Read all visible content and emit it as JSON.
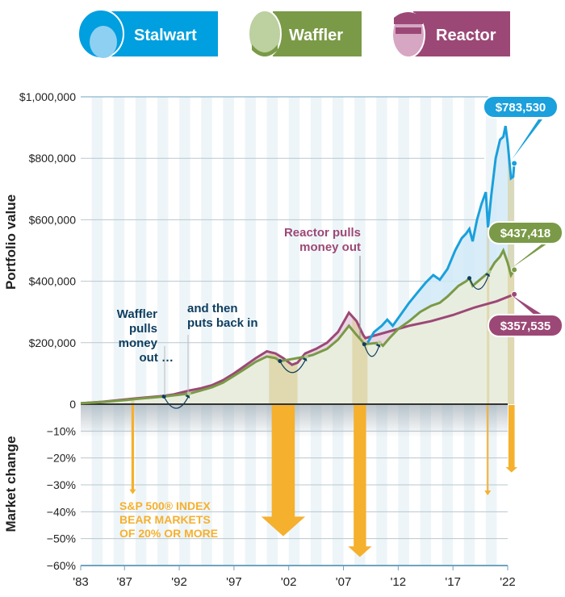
{
  "personas": [
    {
      "name": "Stalwart",
      "color": "#009fdf",
      "face": "#8dd0f2"
    },
    {
      "name": "Waffler",
      "color": "#7a9a47",
      "face": "#bdd0a0"
    },
    {
      "name": "Reactor",
      "color": "#9c4876",
      "face": "#d6a6c3"
    }
  ],
  "chart_data": [
    {
      "type": "line",
      "ylabel": "Portfolio value",
      "ylim": [
        0,
        1000000
      ],
      "yticks": [
        "$1,000,000",
        "$800,000",
        "$600,000",
        "$400,000",
        "$200,000",
        "0"
      ],
      "ytick_values": [
        1000000,
        800000,
        600000,
        400000,
        200000,
        0
      ],
      "grid": true,
      "series": [
        {
          "name": "Stalwart",
          "color": "#1aa0dc",
          "end_label": "$783,530",
          "points": [
            [
              1983,
              3000
            ],
            [
              1985,
              8000
            ],
            [
              1987,
              15000
            ],
            [
              1987.8,
              18000
            ],
            [
              1989,
              22000
            ],
            [
              1990.6,
              27000
            ],
            [
              1991.5,
              32000
            ],
            [
              1993,
              45000
            ],
            [
              1994,
              52000
            ],
            [
              1995,
              62000
            ],
            [
              1996,
              78000
            ],
            [
              1997,
              100000
            ],
            [
              1998,
              125000
            ],
            [
              1999,
              150000
            ],
            [
              2000,
              172000
            ],
            [
              2000.8,
              165000
            ],
            [
              2001.5,
              150000
            ],
            [
              2002.3,
              128000
            ],
            [
              2002.8,
              135000
            ],
            [
              2003.5,
              165000
            ],
            [
              2004.5,
              180000
            ],
            [
              2005.5,
              200000
            ],
            [
              2006.5,
              235000
            ],
            [
              2007.5,
              298000
            ],
            [
              2008.2,
              270000
            ],
            [
              2008.8,
              225000
            ],
            [
              2009.2,
              200000
            ],
            [
              2009.8,
              235000
            ],
            [
              2010.5,
              255000
            ],
            [
              2011,
              275000
            ],
            [
              2011.5,
              255000
            ],
            [
              2012.2,
              290000
            ],
            [
              2013,
              330000
            ],
            [
              2013.8,
              365000
            ],
            [
              2014.5,
              395000
            ],
            [
              2015.2,
              420000
            ],
            [
              2015.8,
              405000
            ],
            [
              2016.5,
              440000
            ],
            [
              2017.2,
              500000
            ],
            [
              2017.8,
              540000
            ],
            [
              2018.2,
              555000
            ],
            [
              2018.5,
              570000
            ],
            [
              2018.8,
              530000
            ],
            [
              2019.2,
              600000
            ],
            [
              2019.6,
              650000
            ],
            [
              2020.0,
              690000
            ],
            [
              2020.2,
              575000
            ],
            [
              2020.5,
              680000
            ],
            [
              2020.9,
              800000
            ],
            [
              2021.3,
              860000
            ],
            [
              2021.6,
              870000
            ],
            [
              2021.8,
              905000
            ],
            [
              2022.0,
              850000
            ],
            [
              2022.3,
              735000
            ],
            [
              2022.5,
              740000
            ],
            [
              2022.6,
              783530
            ]
          ]
        },
        {
          "name": "Waffler",
          "color": "#7a9a47",
          "end_label": "$437,418",
          "points": [
            [
              1983,
              3000
            ],
            [
              1985,
              7000
            ],
            [
              1987,
              13000
            ],
            [
              1987.8,
              16000
            ],
            [
              1989,
              20000
            ],
            [
              1990.6,
              25000
            ],
            [
              1993,
              35000
            ],
            [
              1994,
              45000
            ],
            [
              1995,
              55000
            ],
            [
              1996,
              70000
            ],
            [
              1997,
              92000
            ],
            [
              1998,
              115000
            ],
            [
              1999,
              138000
            ],
            [
              2000,
              155000
            ],
            [
              2000.8,
              150000
            ],
            [
              2001.2,
              140000
            ],
            [
              2003.6,
              155000
            ],
            [
              2004.2,
              160000
            ],
            [
              2005.5,
              180000
            ],
            [
              2006.5,
              210000
            ],
            [
              2007.5,
              255000
            ],
            [
              2008.2,
              225000
            ],
            [
              2008.7,
              205000
            ],
            [
              2008.9,
              195000
            ],
            [
              2010.3,
              200000
            ],
            [
              2010.6,
              190000
            ],
            [
              2011.2,
              215000
            ],
            [
              2012,
              245000
            ],
            [
              2013,
              270000
            ],
            [
              2014,
              300000
            ],
            [
              2015,
              320000
            ],
            [
              2015.8,
              330000
            ],
            [
              2016.5,
              350000
            ],
            [
              2017.5,
              385000
            ],
            [
              2018.2,
              400000
            ],
            [
              2018.5,
              410000
            ],
            [
              2018.8,
              385000
            ],
            [
              2020.3,
              430000
            ],
            [
              2020.8,
              460000
            ],
            [
              2021.3,
              480000
            ],
            [
              2021.6,
              500000
            ],
            [
              2022.0,
              460000
            ],
            [
              2022.3,
              420000
            ],
            [
              2022.6,
              437418
            ]
          ]
        },
        {
          "name": "Reactor",
          "color": "#9c4876",
          "end_label": "$357,535",
          "points": [
            [
              1983,
              3000
            ],
            [
              1985,
              8000
            ],
            [
              1987,
              15000
            ],
            [
              1987.8,
              18000
            ],
            [
              1989,
              22000
            ],
            [
              1990.6,
              27000
            ],
            [
              1991.5,
              32000
            ],
            [
              1993,
              45000
            ],
            [
              1994,
              52000
            ],
            [
              1995,
              62000
            ],
            [
              1996,
              78000
            ],
            [
              1997,
              100000
            ],
            [
              1998,
              125000
            ],
            [
              1999,
              150000
            ],
            [
              2000,
              172000
            ],
            [
              2000.8,
              165000
            ],
            [
              2001.5,
              150000
            ],
            [
              2002.3,
              128000
            ],
            [
              2002.8,
              135000
            ],
            [
              2003.5,
              165000
            ],
            [
              2004.5,
              180000
            ],
            [
              2005.5,
              200000
            ],
            [
              2006.5,
              235000
            ],
            [
              2007.5,
              298000
            ],
            [
              2008.2,
              270000
            ],
            [
              2008.8,
              225000
            ],
            [
              2009.0,
              215000
            ],
            [
              2011,
              235000
            ],
            [
              2013,
              255000
            ],
            [
              2015,
              270000
            ],
            [
              2017,
              290000
            ],
            [
              2019,
              315000
            ],
            [
              2021,
              335000
            ],
            [
              2022.6,
              357535
            ]
          ]
        }
      ],
      "waffler_moves": [
        [
          1990.6,
          1992.9
        ],
        [
          2001.2,
          2003.6
        ],
        [
          2008.9,
          2010.3
        ],
        [
          2018.5,
          2020.3
        ]
      ],
      "annotations": {
        "waffler_out": [
          "Waffler",
          "pulls",
          "money",
          "out …"
        ],
        "waffler_in": [
          "and then",
          "puts back in"
        ],
        "reactor_out": [
          "Reactor pulls",
          "money out"
        ]
      }
    },
    {
      "type": "bar",
      "ylabel": "Market change",
      "ylim": [
        -60,
        0
      ],
      "yticks": [
        "0",
        "−10%",
        "−20%",
        "−30%",
        "−40%",
        "−50%",
        "−60%"
      ],
      "ytick_values": [
        0,
        -10,
        -20,
        -30,
        -40,
        -50,
        -60
      ],
      "xticks": [
        "'83",
        "'87",
        "'92",
        "'97",
        "'02",
        "'07",
        "'12",
        "'17",
        "'22"
      ],
      "xtick_values": [
        1983,
        1987,
        1992,
        1997,
        2002,
        2007,
        2012,
        2017,
        2022
      ],
      "color": "#f5b02e",
      "bear_markets": [
        {
          "start": 1987.6,
          "end": 1987.9,
          "change": -33.5
        },
        {
          "start": 2000.2,
          "end": 2002.8,
          "change": -49.1
        },
        {
          "start": 2007.8,
          "end": 2009.2,
          "change": -56.8
        },
        {
          "start": 2020.1,
          "end": 2020.25,
          "change": -33.9
        },
        {
          "start": 2022.0,
          "end": 2022.7,
          "change": -25.4
        }
      ],
      "legend_text": [
        "S&P 500® INDEX",
        "BEAR MARKETS",
        "OF 20% OR MORE"
      ]
    }
  ]
}
